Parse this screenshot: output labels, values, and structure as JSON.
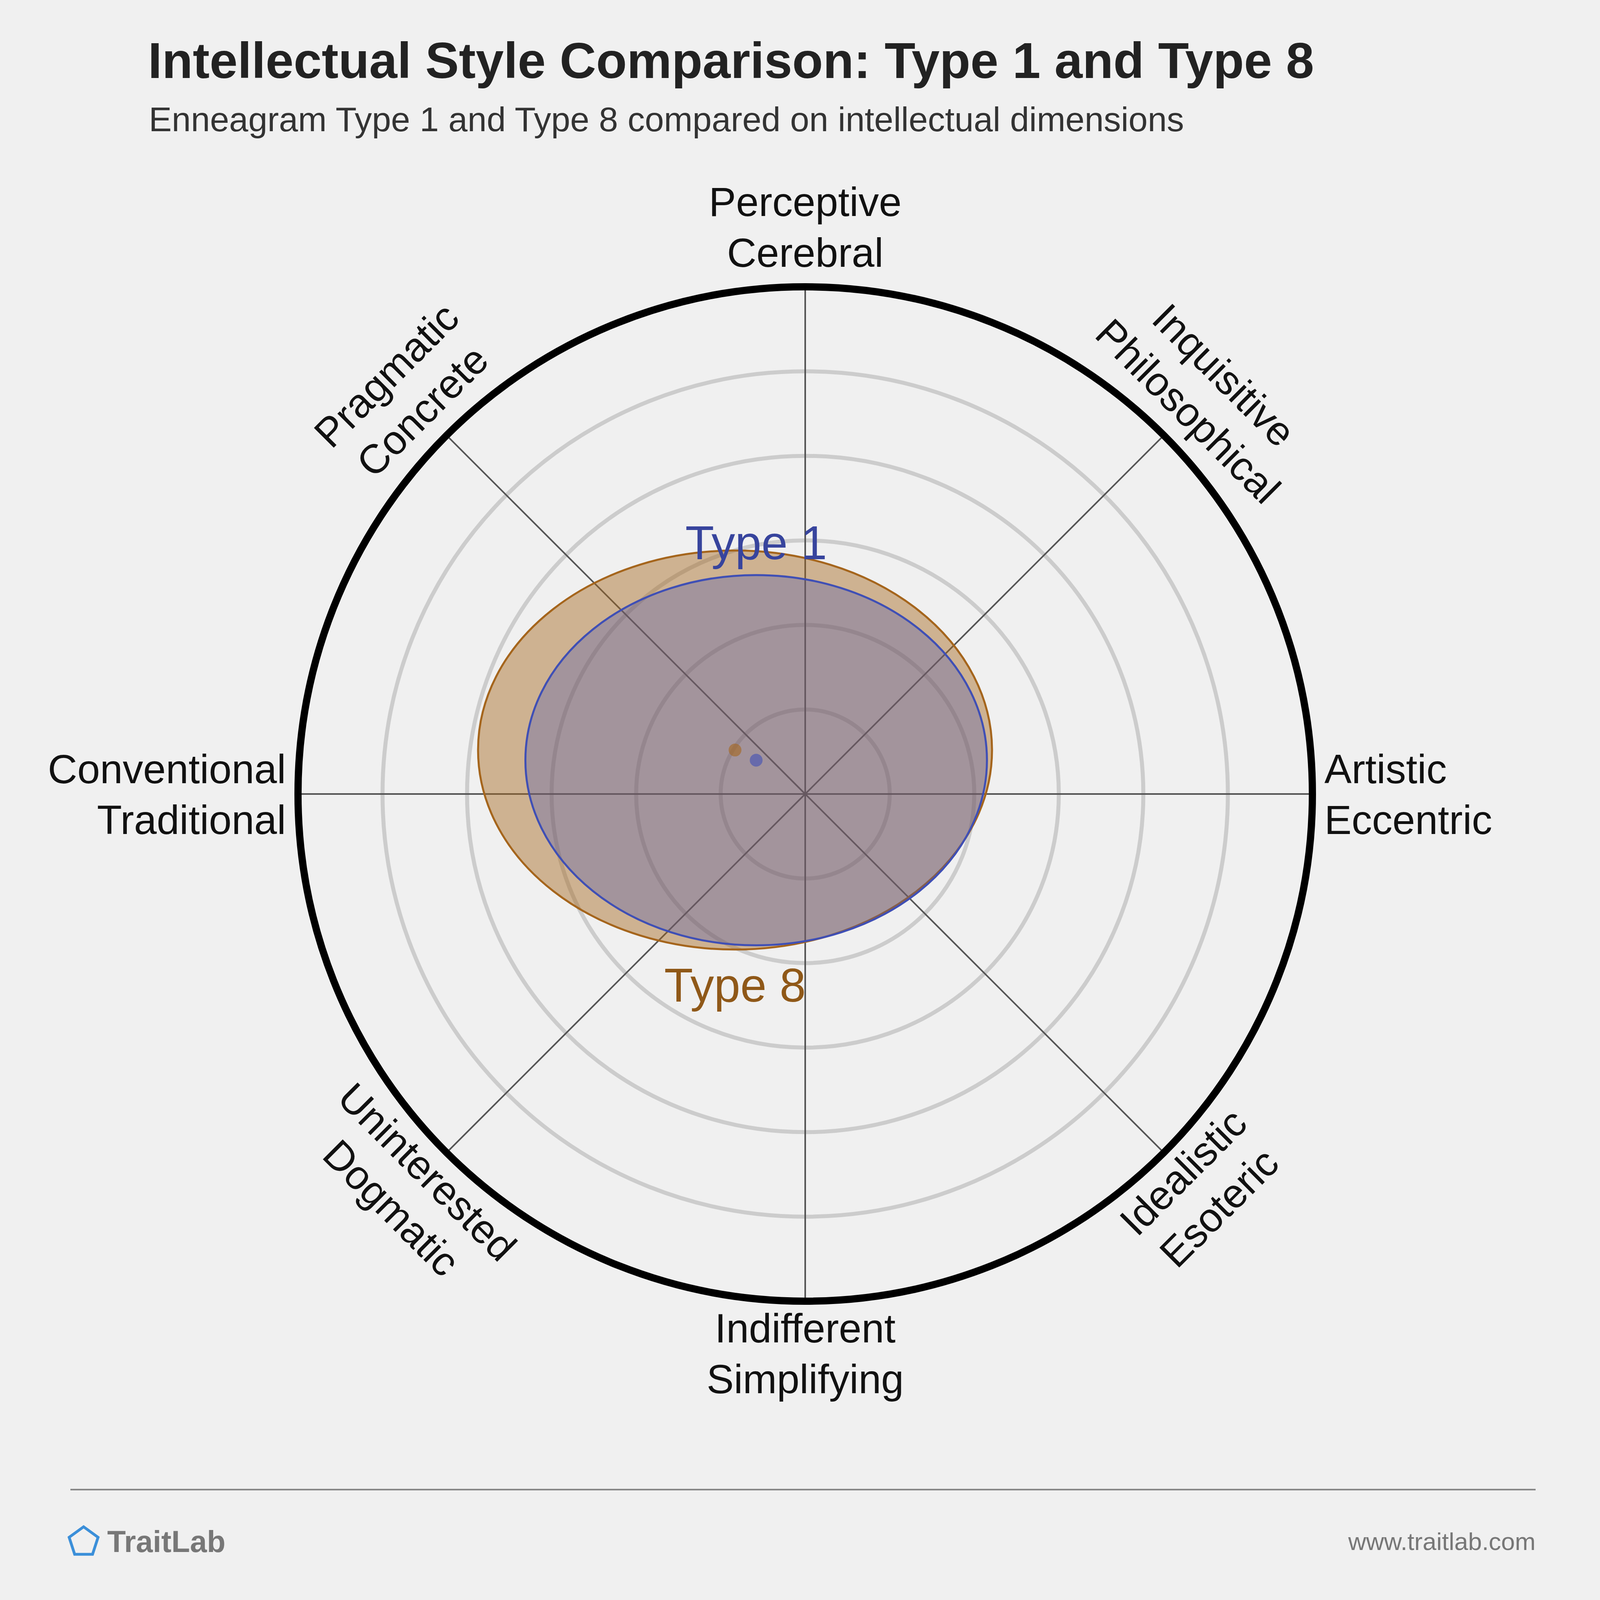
{
  "chart_data": {
    "type": "radar-ellipse",
    "title": "Intellectual Style Comparison: Type 1 and Type 8",
    "subtitle": "Enneagram Type 1 and Type 8 compared on intellectual dimensions",
    "axes": [
      [
        "Perceptive",
        "Cerebral"
      ],
      [
        "Inquisitive",
        "Philosophical"
      ],
      [
        "Artistic",
        "Eccentric"
      ],
      [
        "Idealistic",
        "Esoteric"
      ],
      [
        "Indifferent",
        "Simplifying"
      ],
      [
        "Uninterested",
        "Dogmatic"
      ],
      [
        "Conventional",
        "Traditional"
      ],
      [
        "Pragmatic",
        "Concrete"
      ]
    ],
    "rlim": [
      0,
      6
    ],
    "rticks": [
      1,
      2,
      3,
      4,
      5
    ],
    "grid": true,
    "tick_labels": false,
    "series": [
      {
        "name": "Type 8",
        "color": "#a5651c",
        "center": [
          -0.83,
          0.52
        ],
        "radius": [
          3.04,
          2.36
        ]
      },
      {
        "name": "Type 1",
        "color": "#3f4fb5",
        "center": [
          -0.58,
          0.4
        ],
        "radius": [
          2.73,
          2.19
        ]
      }
    ],
    "footer": {
      "brand": "TraitLab",
      "url": "www.traitlab.com"
    }
  }
}
